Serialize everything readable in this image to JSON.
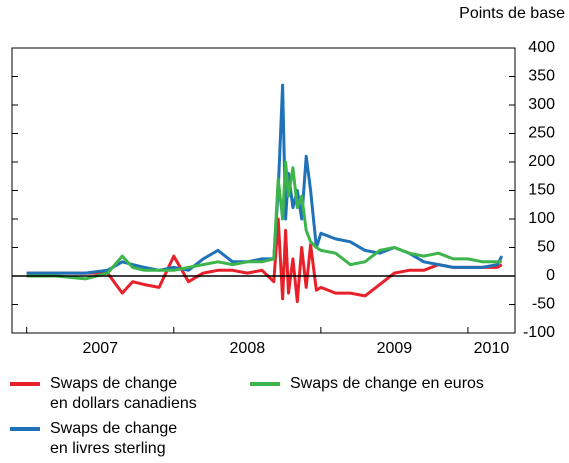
{
  "chart_data": {
    "type": "line",
    "y_axis_label": "Points de base",
    "x": [
      2007.0,
      2007.2,
      2007.4,
      2007.55,
      2007.65,
      2007.72,
      2007.8,
      2007.9,
      2008.0,
      2008.1,
      2008.2,
      2008.3,
      2008.4,
      2008.5,
      2008.6,
      2008.68,
      2008.71,
      2008.74,
      2008.76,
      2008.78,
      2008.81,
      2008.84,
      2008.87,
      2008.9,
      2008.93,
      2008.97,
      2009.0,
      2009.1,
      2009.2,
      2009.3,
      2009.4,
      2009.5,
      2009.6,
      2009.7,
      2009.8,
      2009.9,
      2010.0,
      2010.1,
      2010.2,
      2010.23
    ],
    "series": [
      {
        "name": "Swaps de change en dollars canadiens",
        "color": "#e8202a",
        "values": [
          5,
          5,
          5,
          5,
          -30,
          -10,
          -15,
          -20,
          35,
          -10,
          5,
          10,
          10,
          5,
          10,
          -10,
          100,
          -40,
          80,
          -30,
          30,
          -45,
          50,
          -20,
          55,
          -25,
          -20,
          -30,
          -30,
          -35,
          -15,
          5,
          10,
          10,
          20,
          15,
          15,
          15,
          15,
          20
        ]
      },
      {
        "name": "Swaps de change en livres sterling",
        "color": "#1f72b8",
        "values": [
          5,
          5,
          5,
          10,
          25,
          20,
          15,
          10,
          15,
          10,
          30,
          45,
          25,
          25,
          30,
          30,
          150,
          335,
          100,
          180,
          120,
          150,
          100,
          210,
          150,
          50,
          75,
          65,
          60,
          45,
          40,
          50,
          40,
          25,
          20,
          15,
          15,
          15,
          20,
          35
        ]
      },
      {
        "name": "Swaps de change en euros",
        "color": "#3db54a",
        "values": [
          0,
          0,
          -5,
          5,
          35,
          15,
          10,
          10,
          10,
          15,
          20,
          25,
          20,
          25,
          25,
          30,
          170,
          100,
          200,
          140,
          190,
          120,
          140,
          80,
          60,
          50,
          45,
          40,
          20,
          25,
          45,
          50,
          40,
          35,
          40,
          30,
          30,
          25,
          25,
          25
        ]
      }
    ],
    "xlim": [
      2006.9,
      2010.32
    ],
    "xticks": [
      {
        "value": 2007.5,
        "label": "2007"
      },
      {
        "value": 2008.5,
        "label": "2008"
      },
      {
        "value": 2009.5,
        "label": "2009"
      },
      {
        "value": 2010.16,
        "label": "2010"
      }
    ],
    "xminor_ticks": [
      2007,
      2008,
      2009,
      2010
    ],
    "ylim": [
      -100,
      400
    ],
    "yticks": [
      -100,
      -50,
      0,
      50,
      100,
      150,
      200,
      250,
      300,
      350,
      400
    ]
  }
}
